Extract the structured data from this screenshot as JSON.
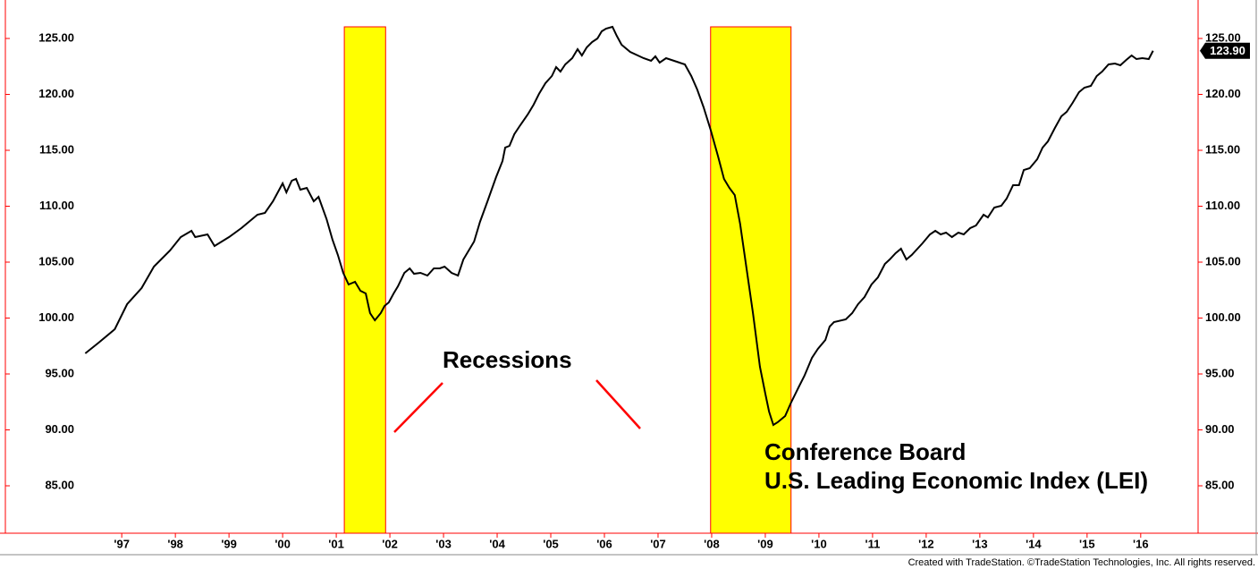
{
  "chart_data": {
    "type": "line",
    "annotations": [
      "Recessions",
      "Conference Board",
      "U.S. Leading Economic Index (LEI)"
    ],
    "footer": "Created with TradeStation. ©TradeStation Technologies, Inc. All rights reserved.",
    "color": "#000000",
    "band_color": "#ffff00",
    "band_edge_color": "#ff0000",
    "recession_top": 126.04,
    "recessions": [
      {
        "start": 2001.15,
        "end": 2001.92
      },
      {
        "start": 2007.98,
        "end": 2009.48
      }
    ],
    "xlim": [
      1994.83,
      2017.07
    ],
    "xticks": [
      {
        "value": 1997,
        "label": "'97"
      },
      {
        "value": 1998,
        "label": "'98"
      },
      {
        "value": 1999,
        "label": "'99"
      },
      {
        "value": 2000,
        "label": "'00"
      },
      {
        "value": 2001,
        "label": "'01"
      },
      {
        "value": 2002,
        "label": "'02"
      },
      {
        "value": 2003,
        "label": "'03"
      },
      {
        "value": 2004,
        "label": "'04"
      },
      {
        "value": 2005,
        "label": "'05"
      },
      {
        "value": 2006,
        "label": "'06"
      },
      {
        "value": 2007,
        "label": "'07"
      },
      {
        "value": 2008,
        "label": "'08"
      },
      {
        "value": 2009,
        "label": "'09"
      },
      {
        "value": 2010,
        "label": "'10"
      },
      {
        "value": 2011,
        "label": "'11"
      },
      {
        "value": 2012,
        "label": "'12"
      },
      {
        "value": 2013,
        "label": "'13"
      },
      {
        "value": 2014,
        "label": "'14"
      },
      {
        "value": 2015,
        "label": "'15"
      },
      {
        "value": 2016,
        "label": "'16"
      }
    ],
    "ylim": [
      80.76,
      128.44
    ],
    "yticks": [
      {
        "value": 85,
        "label": "85.00"
      },
      {
        "value": 90,
        "label": "90.00"
      },
      {
        "value": 95,
        "label": "95.00"
      },
      {
        "value": 100,
        "label": "100.00"
      },
      {
        "value": 105,
        "label": "105.00"
      },
      {
        "value": 110,
        "label": "110.00"
      },
      {
        "value": 115,
        "label": "115.00"
      },
      {
        "value": 120,
        "label": "120.00"
      },
      {
        "value": 125,
        "label": "125.00"
      }
    ],
    "last_label": "123.90",
    "x": [
      1996.32,
      1996.57,
      1996.87,
      1997.1,
      1997.37,
      1997.6,
      1997.9,
      1998.1,
      1998.3,
      1998.37,
      1998.6,
      1998.73,
      1999.0,
      1999.23,
      1999.53,
      1999.67,
      1999.82,
      2000.0,
      2000.07,
      2000.17,
      2000.25,
      2000.33,
      2000.45,
      2000.58,
      2000.67,
      2000.82,
      2000.93,
      2001.03,
      2001.13,
      2001.23,
      2001.35,
      2001.45,
      2001.55,
      2001.63,
      2001.72,
      2001.83,
      2001.9,
      2001.98,
      2002.07,
      2002.15,
      2002.27,
      2002.37,
      2002.45,
      2002.57,
      2002.7,
      2002.82,
      2002.93,
      2003.02,
      2003.15,
      2003.27,
      2003.37,
      2003.57,
      2003.68,
      2003.82,
      2003.98,
      2004.1,
      2004.15,
      2004.23,
      2004.32,
      2004.43,
      2004.57,
      2004.68,
      2004.78,
      2004.9,
      2005.02,
      2005.1,
      2005.18,
      2005.27,
      2005.4,
      2005.5,
      2005.58,
      2005.67,
      2005.77,
      2005.87,
      2005.95,
      2006.03,
      2006.15,
      2006.23,
      2006.32,
      2006.48,
      2006.73,
      2006.87,
      2006.95,
      2007.03,
      2007.15,
      2007.4,
      2007.5,
      2007.62,
      2007.73,
      2007.85,
      2007.98,
      2008.12,
      2008.23,
      2008.33,
      2008.43,
      2008.53,
      2008.65,
      2008.77,
      2008.9,
      2009.0,
      2009.07,
      2009.15,
      2009.23,
      2009.37,
      2009.48,
      2009.62,
      2009.73,
      2009.87,
      2009.98,
      2010.12,
      2010.2,
      2010.28,
      2010.5,
      2010.62,
      2010.73,
      2010.85,
      2010.98,
      2011.1,
      2011.23,
      2011.32,
      2011.43,
      2011.53,
      2011.63,
      2011.73,
      2011.93,
      2012.07,
      2012.17,
      2012.27,
      2012.37,
      2012.48,
      2012.6,
      2012.7,
      2012.82,
      2012.93,
      2013.07,
      2013.15,
      2013.27,
      2013.4,
      2013.5,
      2013.62,
      2013.73,
      2013.82,
      2013.93,
      2014.07,
      2014.17,
      2014.27,
      2014.4,
      2014.52,
      2014.62,
      2014.73,
      2014.85,
      2014.95,
      2015.07,
      2015.18,
      2015.28,
      2015.4,
      2015.52,
      2015.62,
      2015.73,
      2015.83,
      2015.92,
      2016.03,
      2016.15,
      2016.23
    ],
    "values": [
      96.84,
      97.8,
      99.0,
      101.24,
      102.68,
      104.6,
      106.04,
      107.24,
      107.8,
      107.24,
      107.48,
      106.44,
      107.24,
      108.04,
      109.24,
      109.4,
      110.44,
      112.04,
      111.24,
      112.28,
      112.44,
      111.48,
      111.64,
      110.44,
      110.84,
      108.84,
      107.0,
      105.64,
      104.04,
      103.0,
      103.24,
      102.44,
      102.2,
      100.44,
      99.8,
      100.44,
      101.08,
      101.4,
      102.2,
      102.84,
      104.04,
      104.44,
      103.96,
      104.04,
      103.8,
      104.44,
      104.44,
      104.6,
      104.04,
      103.8,
      105.24,
      106.84,
      108.6,
      110.44,
      112.6,
      114.04,
      115.24,
      115.4,
      116.44,
      117.24,
      118.2,
      119.08,
      120.04,
      121.0,
      121.64,
      122.44,
      122.04,
      122.68,
      123.24,
      124.04,
      123.48,
      124.2,
      124.68,
      125.0,
      125.64,
      125.88,
      126.04,
      125.24,
      124.44,
      123.8,
      123.24,
      123.0,
      123.4,
      122.84,
      123.24,
      122.84,
      122.68,
      121.64,
      120.44,
      118.84,
      116.84,
      114.44,
      112.44,
      111.64,
      111.0,
      108.44,
      104.44,
      100.44,
      95.64,
      93.24,
      91.64,
      90.44,
      90.68,
      91.24,
      92.44,
      93.8,
      94.84,
      96.44,
      97.24,
      98.04,
      99.24,
      99.64,
      99.88,
      100.44,
      101.24,
      101.88,
      103.0,
      103.64,
      104.84,
      105.24,
      105.8,
      106.2,
      105.24,
      105.64,
      106.68,
      107.48,
      107.8,
      107.48,
      107.64,
      107.24,
      107.64,
      107.48,
      108.04,
      108.28,
      109.24,
      109.0,
      109.88,
      110.04,
      110.68,
      111.88,
      111.88,
      113.24,
      113.4,
      114.2,
      115.24,
      115.8,
      117.0,
      118.04,
      118.44,
      119.24,
      120.2,
      120.6,
      120.76,
      121.64,
      122.04,
      122.68,
      122.76,
      122.6,
      123.08,
      123.48,
      123.16,
      123.24,
      123.16,
      123.9
    ]
  }
}
